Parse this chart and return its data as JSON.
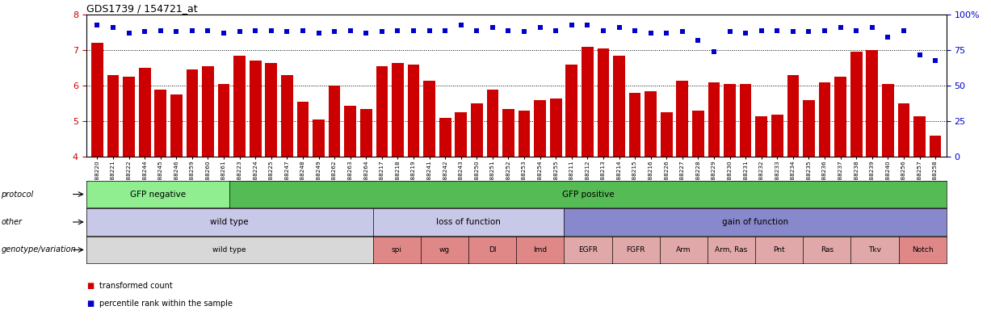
{
  "title": "GDS1739 / 154721_at",
  "samples": [
    "GSM88220",
    "GSM88221",
    "GSM88222",
    "GSM88244",
    "GSM88245",
    "GSM88246",
    "GSM88259",
    "GSM88260",
    "GSM88261",
    "GSM88223",
    "GSM88224",
    "GSM88225",
    "GSM88247",
    "GSM88248",
    "GSM88249",
    "GSM88262",
    "GSM88263",
    "GSM88264",
    "GSM88217",
    "GSM88218",
    "GSM88219",
    "GSM88241",
    "GSM88242",
    "GSM88243",
    "GSM88250",
    "GSM88251",
    "GSM88252",
    "GSM88253",
    "GSM88254",
    "GSM88255",
    "GSM88211",
    "GSM88212",
    "GSM88213",
    "GSM88214",
    "GSM88215",
    "GSM88216",
    "GSM88226",
    "GSM88227",
    "GSM88228",
    "GSM88229",
    "GSM88230",
    "GSM88231",
    "GSM88232",
    "GSM88233",
    "GSM88234",
    "GSM88235",
    "GSM88236",
    "GSM88237",
    "GSM88238",
    "GSM88239",
    "GSM88240",
    "GSM88256",
    "GSM88257",
    "GSM88258"
  ],
  "bar_values": [
    7.2,
    6.3,
    6.25,
    6.5,
    5.9,
    5.75,
    6.45,
    6.55,
    6.05,
    6.85,
    6.7,
    6.65,
    6.3,
    5.55,
    5.05,
    6.0,
    5.45,
    5.35,
    6.55,
    6.65,
    6.6,
    6.15,
    5.1,
    5.25,
    5.5,
    5.9,
    5.35,
    5.3,
    5.6,
    5.65,
    6.6,
    7.1,
    7.05,
    6.85,
    5.8,
    5.85,
    5.25,
    6.15,
    5.3,
    6.1,
    6.05,
    6.05,
    5.15,
    5.2,
    6.3,
    5.6,
    6.1,
    6.25,
    6.95,
    7.0,
    6.05,
    5.5,
    5.15,
    4.6
  ],
  "dot_values_pct": [
    93,
    91,
    87,
    88,
    89,
    88,
    89,
    89,
    87,
    88,
    89,
    89,
    88,
    89,
    87,
    88,
    89,
    87,
    88,
    89,
    89,
    89,
    89,
    93,
    89,
    91,
    89,
    88,
    91,
    89,
    93,
    93,
    89,
    91,
    89,
    87,
    87,
    88,
    82,
    74,
    88,
    87,
    89,
    89,
    88,
    88,
    89,
    91,
    89,
    91,
    84,
    89,
    72,
    68
  ],
  "bar_color": "#cc0000",
  "dot_color": "#0000cc",
  "ymin": 4,
  "ymax": 8,
  "yticks_left": [
    4,
    5,
    6,
    7,
    8
  ],
  "yticks_right_pct": [
    0,
    25,
    50,
    75,
    100
  ],
  "hlines": [
    5.0,
    6.0,
    7.0
  ],
  "protocol_groups": [
    {
      "label": "GFP negative",
      "start": 0,
      "end": 9,
      "color": "#90ee90"
    },
    {
      "label": "GFP positive",
      "start": 9,
      "end": 54,
      "color": "#55bb55"
    }
  ],
  "other_groups": [
    {
      "label": "wild type",
      "start": 0,
      "end": 18,
      "color": "#c8c8e8"
    },
    {
      "label": "loss of function",
      "start": 18,
      "end": 30,
      "color": "#c8c8e8"
    },
    {
      "label": "gain of function",
      "start": 30,
      "end": 54,
      "color": "#8888cc"
    }
  ],
  "genotype_groups": [
    {
      "label": "wild type",
      "start": 0,
      "end": 18,
      "color": "#d8d8d8"
    },
    {
      "label": "spi",
      "start": 18,
      "end": 21,
      "color": "#e08888"
    },
    {
      "label": "wg",
      "start": 21,
      "end": 24,
      "color": "#e08888"
    },
    {
      "label": "Dl",
      "start": 24,
      "end": 27,
      "color": "#e08888"
    },
    {
      "label": "Imd",
      "start": 27,
      "end": 30,
      "color": "#e08888"
    },
    {
      "label": "EGFR",
      "start": 30,
      "end": 33,
      "color": "#e0a8a8"
    },
    {
      "label": "FGFR",
      "start": 33,
      "end": 36,
      "color": "#e0a8a8"
    },
    {
      "label": "Arm",
      "start": 36,
      "end": 39,
      "color": "#e0a8a8"
    },
    {
      "label": "Arm, Ras",
      "start": 39,
      "end": 42,
      "color": "#e0a8a8"
    },
    {
      "label": "Pnt",
      "start": 42,
      "end": 45,
      "color": "#e0a8a8"
    },
    {
      "label": "Ras",
      "start": 45,
      "end": 48,
      "color": "#e0a8a8"
    },
    {
      "label": "Tkv",
      "start": 48,
      "end": 51,
      "color": "#e0a8a8"
    },
    {
      "label": "Notch",
      "start": 51,
      "end": 54,
      "color": "#e08888"
    }
  ],
  "row_labels": [
    "protocol",
    "other",
    "genotype/variation"
  ],
  "legend_items": [
    {
      "color": "#cc0000",
      "marker": "s",
      "label": "transformed count"
    },
    {
      "color": "#0000cc",
      "marker": "s",
      "label": "percentile rank within the sample"
    }
  ],
  "fig_bg": "#ffffff",
  "chart_bg": "#ffffff"
}
